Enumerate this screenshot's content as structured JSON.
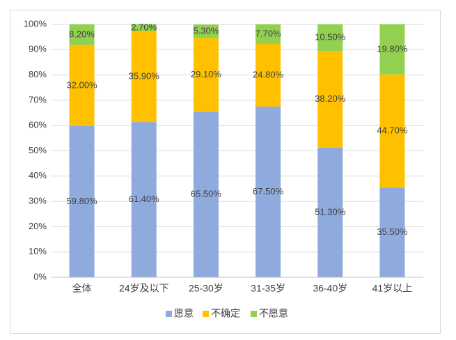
{
  "chart_data": {
    "type": "stacked-bar",
    "categories": [
      "全体",
      "24岁及以下",
      "25-30岁",
      "31-35岁",
      "36-40岁",
      "41岁以上"
    ],
    "series": [
      {
        "name": "愿意",
        "color": "#8faadc",
        "values": [
          59.8,
          61.4,
          65.5,
          67.5,
          51.3,
          35.5
        ],
        "value_labels": [
          "59.80%",
          "61.40%",
          "65.50%",
          "67.50%",
          "51.30%",
          "35.50%"
        ]
      },
      {
        "name": "不确定",
        "color": "#ffc000",
        "values": [
          32.0,
          35.9,
          29.1,
          24.8,
          38.2,
          44.7
        ],
        "value_labels": [
          "32.00%",
          "35.90%",
          "29.10%",
          "24.80%",
          "38.20%",
          "44.70%"
        ]
      },
      {
        "name": "不愿意",
        "color": "#92d050",
        "values": [
          8.2,
          2.7,
          5.3,
          7.7,
          10.5,
          19.8
        ],
        "value_labels": [
          "8.20%",
          "2.70%",
          "5.30%",
          "7.70%",
          "10.50%",
          "19.80%"
        ]
      }
    ],
    "ylim": [
      0,
      100
    ],
    "yticks": [
      {
        "value": 0,
        "label": "0%"
      },
      {
        "value": 10,
        "label": "10%"
      },
      {
        "value": 20,
        "label": "20%"
      },
      {
        "value": 30,
        "label": "30%"
      },
      {
        "value": 40,
        "label": "40%"
      },
      {
        "value": 50,
        "label": "50%"
      },
      {
        "value": 60,
        "label": "60%"
      },
      {
        "value": 70,
        "label": "70%"
      },
      {
        "value": 80,
        "label": "80%"
      },
      {
        "value": 90,
        "label": "90%"
      },
      {
        "value": 100,
        "label": "100%"
      }
    ],
    "grid": true,
    "legend": "bottom"
  }
}
